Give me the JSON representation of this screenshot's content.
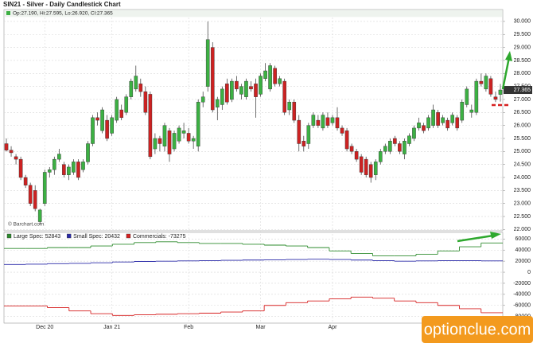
{
  "chart_data": [
    {
      "type": "candlestick",
      "title": "SIN21 - Silver - Daily Candlestick Chart",
      "ohlc_info": "Op:27.190, Hi:27.595, Lo:26.920, Cl:27.365",
      "source": "© Barchart.com",
      "up_color": "#3cb043",
      "down_color": "#cc2222",
      "categories": [
        null,
        null,
        null,
        null,
        null,
        null,
        null,
        null,
        "Dec 20",
        null,
        null,
        null,
        null,
        null,
        null,
        null,
        null,
        null,
        null,
        null,
        null,
        null,
        "Jan 21",
        null,
        null,
        null,
        null,
        null,
        null,
        null,
        null,
        null,
        null,
        null,
        null,
        null,
        null,
        null,
        "Feb",
        null,
        null,
        null,
        null,
        null,
        null,
        null,
        null,
        null,
        null,
        null,
        null,
        null,
        null,
        "Mar",
        null,
        null,
        null,
        null,
        null,
        null,
        null,
        null,
        null,
        null,
        null,
        null,
        null,
        null,
        "Apr",
        null,
        null,
        null,
        null,
        null,
        null,
        null,
        null,
        null,
        null,
        null,
        null,
        null,
        null,
        null,
        null,
        null,
        null,
        null,
        null,
        null,
        null,
        null,
        null,
        null,
        null,
        null,
        null,
        null,
        null,
        null,
        null,
        null,
        null,
        null
      ],
      "open": [
        25.3,
        25.05,
        24.8,
        24.7,
        24.0,
        23.7,
        23.5,
        22.3,
        23.0,
        24.2,
        24.3,
        24.7,
        24.5,
        24.1,
        24.2,
        24.6,
        24.3,
        24.6,
        25.3,
        26.3,
        25.8,
        26.2,
        25.7,
        26.2,
        26.6,
        26.5,
        27.1,
        27.4,
        27.6,
        27.3,
        27.2,
        25.1,
        25.5,
        25.2,
        25.8,
        25.1,
        25.4,
        25.7,
        25.7,
        25.4,
        25.2,
        26.9,
        27.5,
        29.0,
        26.7,
        26.8,
        27.6,
        27.0,
        27.7,
        27.2,
        27.1,
        27.5,
        27.6,
        27.2,
        27.8,
        27.4,
        28.2,
        27.6,
        27.7,
        26.6,
        26.9,
        26.2,
        25.4,
        25.3,
        26.0,
        26.2,
        25.9,
        26.3,
        26.1,
        26.3,
        25.9,
        25.8,
        25.2,
        25.0,
        24.8,
        24.7,
        24.5,
        24.1,
        24.6,
        25.0,
        25.0,
        25.5,
        25.3,
        24.9,
        25.3,
        25.5,
        25.9,
        26.0,
        25.9,
        26.0,
        26.5,
        26.1,
        26.2,
        26.1,
        26.3,
        26.2,
        26.8,
        26.5,
        26.5,
        27.7,
        27.4,
        27.8,
        27.1,
        27.19
      ],
      "high": [
        25.5,
        25.2,
        24.9,
        24.8,
        24.1,
        23.8,
        23.7,
        22.8,
        24.3,
        24.4,
        24.8,
        25.1,
        24.6,
        24.5,
        24.7,
        24.7,
        24.7,
        25.4,
        26.4,
        26.5,
        26.7,
        26.4,
        26.4,
        27.1,
        26.8,
        27.2,
        27.8,
        28.3,
        27.8,
        27.5,
        27.3,
        25.7,
        25.6,
        26.1,
        25.9,
        25.8,
        26.0,
        26.1,
        25.9,
        25.6,
        27.0,
        27.3,
        30.0,
        29.2,
        27.1,
        27.5,
        27.8,
        27.8,
        27.9,
        27.6,
        27.8,
        27.7,
        27.8,
        28.0,
        28.4,
        28.4,
        28.3,
        27.9,
        27.8,
        27.0,
        27.0,
        26.4,
        25.6,
        26.1,
        26.5,
        26.4,
        26.5,
        26.5,
        26.4,
        26.7,
        26.0,
        25.9,
        25.3,
        25.1,
        24.9,
        24.8,
        24.6,
        24.7,
        25.1,
        25.3,
        25.5,
        25.6,
        25.4,
        25.5,
        25.7,
        26.0,
        26.3,
        26.1,
        26.4,
        26.8,
        26.6,
        26.4,
        26.3,
        26.5,
        26.4,
        27.0,
        27.5,
        26.8,
        27.8,
        28.0,
        28.0,
        27.9,
        27.3,
        27.595
      ],
      "low": [
        25.0,
        24.8,
        24.5,
        23.9,
        23.6,
        22.9,
        22.7,
        22.2,
        22.9,
        24.0,
        24.1,
        24.6,
        24.0,
        23.9,
        24.1,
        23.9,
        24.2,
        24.5,
        25.2,
        26.0,
        25.7,
        25.4,
        25.6,
        26.1,
        26.2,
        26.4,
        27.0,
        27.3,
        27.1,
        26.4,
        24.7,
        24.9,
        25.0,
        25.0,
        24.6,
        25.0,
        25.3,
        25.5,
        25.3,
        25.1,
        25.0,
        26.7,
        27.3,
        26.5,
        26.2,
        26.6,
        26.8,
        26.9,
        27.3,
        27.0,
        27.0,
        27.3,
        26.3,
        27.1,
        27.7,
        27.3,
        27.5,
        27.5,
        26.4,
        26.4,
        26.1,
        25.0,
        25.0,
        25.1,
        25.9,
        25.9,
        25.8,
        25.9,
        26.0,
        25.8,
        25.6,
        25.0,
        24.9,
        24.6,
        24.1,
        24.0,
        23.8,
        23.9,
        24.5,
        24.9,
        24.9,
        25.2,
        24.9,
        24.7,
        25.2,
        25.4,
        25.8,
        25.7,
        25.8,
        25.9,
        25.9,
        26.0,
        25.8,
        26.0,
        25.8,
        26.1,
        26.7,
        26.3,
        26.4,
        27.5,
        27.3,
        27.1,
        26.9,
        26.92
      ],
      "close": [
        25.05,
        24.95,
        24.7,
        24.0,
        23.7,
        23.0,
        22.8,
        22.75,
        24.2,
        24.3,
        24.7,
        24.9,
        24.1,
        24.4,
        24.6,
        24.0,
        24.6,
        25.3,
        26.3,
        26.2,
        26.6,
        25.5,
        26.3,
        27.0,
        26.3,
        27.1,
        27.7,
        27.9,
        27.3,
        26.5,
        24.8,
        25.5,
        25.3,
        26.0,
        24.9,
        25.7,
        25.9,
        25.8,
        25.4,
        25.5,
        26.9,
        27.1,
        29.3,
        26.6,
        27.0,
        27.4,
        26.9,
        27.7,
        27.4,
        27.5,
        27.7,
        27.4,
        27.1,
        27.9,
        28.1,
        28.3,
        27.6,
        27.8,
        26.5,
        26.9,
        26.2,
        25.3,
        25.2,
        26.0,
        26.4,
        26.0,
        26.4,
        26.0,
        26.3,
        25.9,
        25.7,
        25.1,
        25.0,
        24.7,
        24.2,
        24.1,
        24.0,
        24.6,
        25.0,
        25.2,
        25.4,
        25.3,
        25.0,
        25.4,
        25.6,
        25.9,
        26.1,
        25.8,
        26.3,
        26.6,
        26.0,
        26.3,
        25.9,
        26.4,
        25.9,
        26.9,
        27.4,
        26.6,
        27.7,
        27.6,
        27.9,
        27.2,
        27.0,
        27.365
      ],
      "ylim": [
        21.95,
        30.15
      ],
      "yticks": [
        {
          "value": 22,
          "label": "22.000"
        },
        {
          "value": 22.5,
          "label": "22.500"
        },
        {
          "value": 23,
          "label": "23.000"
        },
        {
          "value": 23.5,
          "label": "23.500"
        },
        {
          "value": 24,
          "label": "24.000"
        },
        {
          "value": 24.5,
          "label": "24.500"
        },
        {
          "value": 25,
          "label": "25.000"
        },
        {
          "value": 25.5,
          "label": "25.500"
        },
        {
          "value": 26,
          "label": "26.000"
        },
        {
          "value": 26.5,
          "label": "26.500"
        },
        {
          "value": 27,
          "label": "27.000"
        },
        {
          "value": 27.5,
          "label": "27.500"
        },
        {
          "value": 28,
          "label": "28.000"
        },
        {
          "value": 28.5,
          "label": "28.500"
        },
        {
          "value": 29,
          "label": "29.000"
        },
        {
          "value": 29.5,
          "label": "29.500"
        },
        {
          "value": 30,
          "label": "30.000"
        }
      ],
      "grid": true
    },
    {
      "type": "line",
      "step": true,
      "series": [
        {
          "name": "Large Spec: 52843",
          "color": "#2e8b2e",
          "values": [
            43000,
            43000,
            44500,
            44500,
            47500,
            50500,
            53500,
            55000,
            53500,
            52000,
            52000,
            50500,
            49000,
            47500,
            44500,
            38500,
            34000,
            29500,
            29500,
            32500,
            38500,
            46000,
            52843
          ]
        },
        {
          "name": "Small Spec: 20432",
          "color": "#2a2aa8",
          "values": [
            14000,
            14500,
            15500,
            16000,
            17000,
            18500,
            19500,
            20000,
            20500,
            21000,
            21500,
            22000,
            22500,
            23000,
            23500,
            23000,
            22000,
            21000,
            20000,
            20500,
            21000,
            21000,
            20432
          ]
        },
        {
          "name": "Commercials: -73275",
          "color": "#d62020",
          "values": [
            -61000,
            -61000,
            -64000,
            -70000,
            -75000,
            -78000,
            -77000,
            -76000,
            -75000,
            -74000,
            -72000,
            -70000,
            -60000,
            -55000,
            -52000,
            -48000,
            -45000,
            -47000,
            -52000,
            -55000,
            -60000,
            -66000,
            -73275
          ]
        }
      ],
      "ylim": [
        -92000,
        72000
      ],
      "yticks": [
        -80000,
        -60000,
        -40000,
        -20000,
        0,
        20000,
        40000,
        60000
      ],
      "grid": true
    }
  ],
  "watermark": "optionclue.com"
}
